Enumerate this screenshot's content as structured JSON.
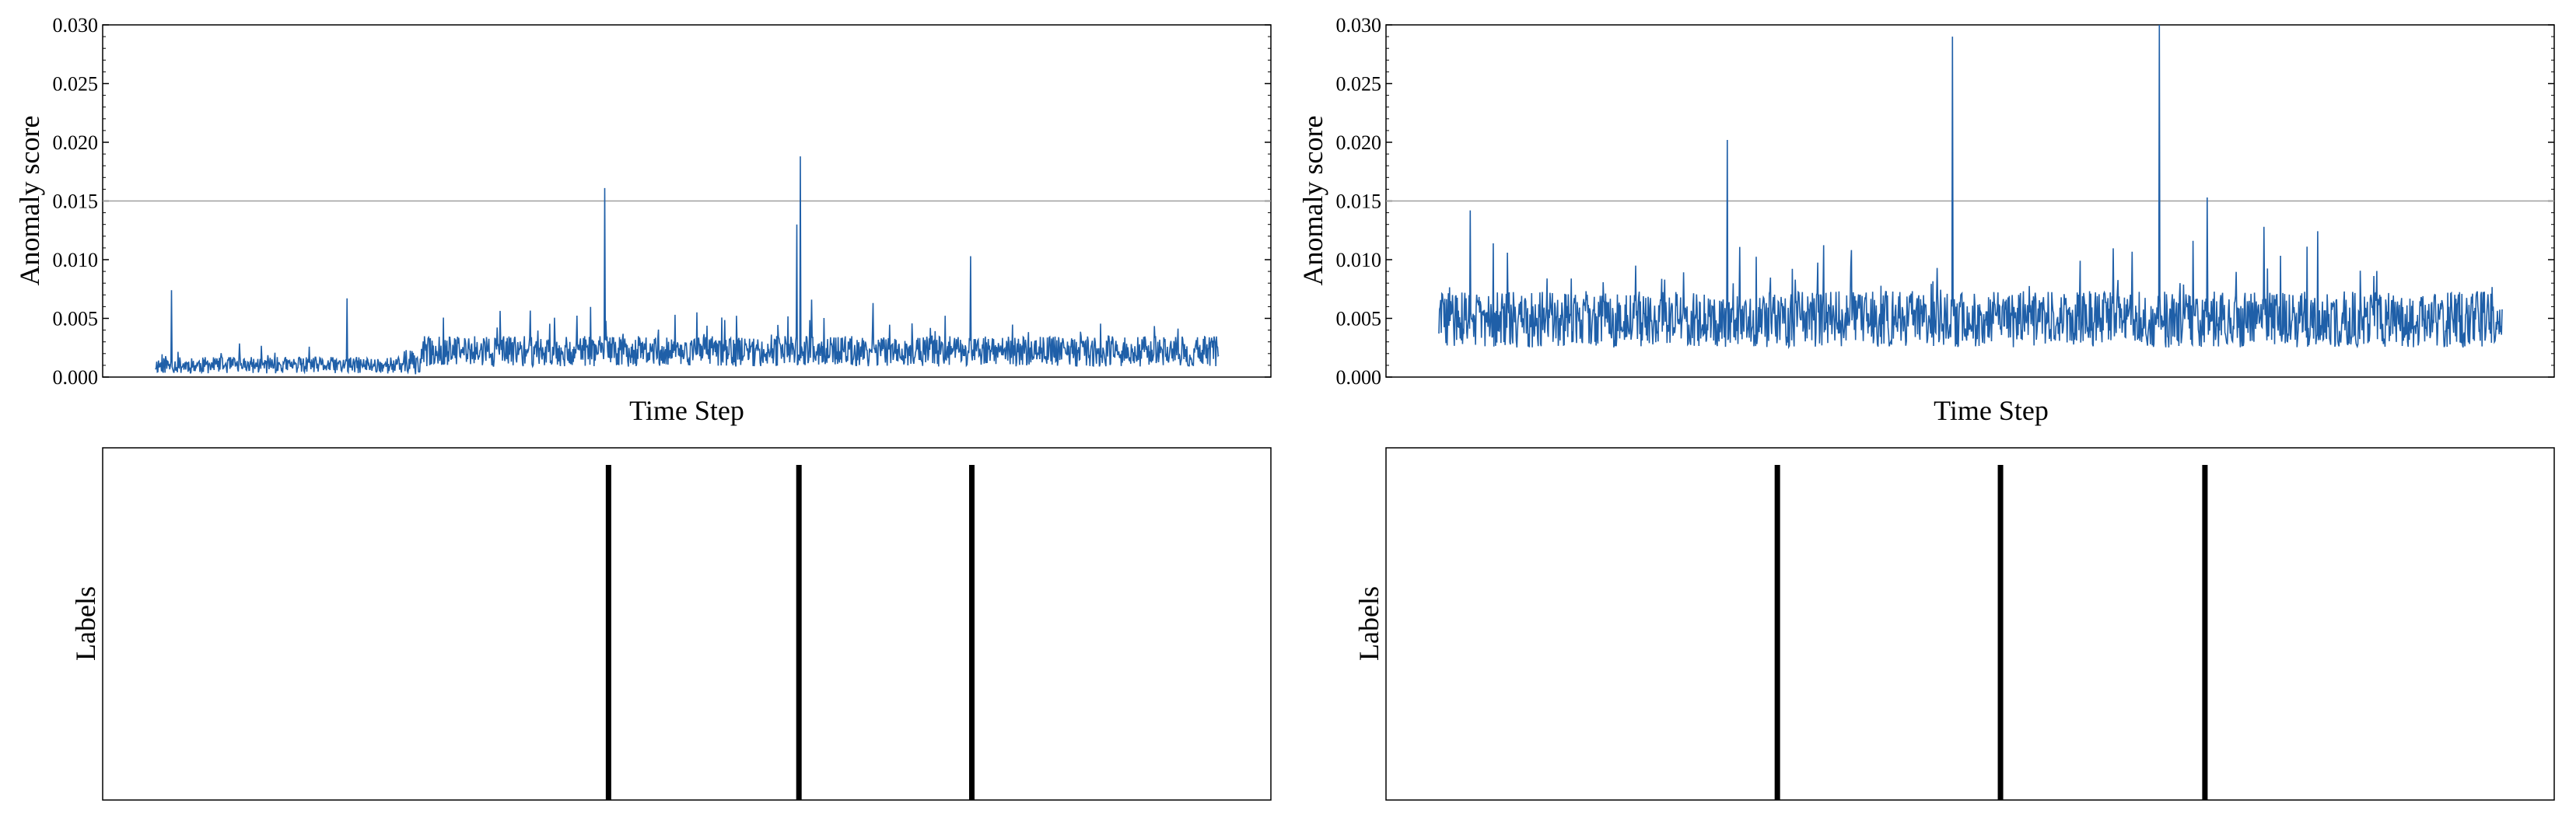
{
  "chart_data": [
    {
      "type": "line",
      "panel": "top-left",
      "xlabel": "Time Step",
      "ylabel": "Anomaly score",
      "ylim": [
        0,
        0.03
      ],
      "yticks": [
        "0.000",
        "0.005",
        "0.010",
        "0.015",
        "0.020",
        "0.025",
        "0.030"
      ],
      "x_ticks_shown": false,
      "xlim": [
        0,
        1000
      ],
      "data_x_range": [
        0,
        920
      ],
      "threshold": 0.015,
      "series_color": "#1f5fa8",
      "threshold_color": "#a0a0a0",
      "peaks": [
        {
          "x": 430,
          "y": 0.0161
        },
        {
          "x": 594,
          "y": 0.013
        },
        {
          "x": 597,
          "y": 0.0188
        },
        {
          "x": 743,
          "y": 0.0103
        },
        {
          "x": 59,
          "y": 0.0074
        },
        {
          "x": 209,
          "y": 0.0067
        }
      ]
    },
    {
      "type": "line",
      "panel": "top-right",
      "xlabel": "Time Step",
      "ylabel": "Anomaly score",
      "ylim": [
        0,
        0.03
      ],
      "yticks": [
        "0.000",
        "0.005",
        "0.010",
        "0.015",
        "0.020",
        "0.025",
        "0.030"
      ],
      "x_ticks_shown": false,
      "xlim": [
        0,
        1000
      ],
      "data_x_range": [
        0,
        920
      ],
      "threshold": 0.015,
      "series_color": "#1f5fa8",
      "threshold_color": "#a0a0a0",
      "peaks": [
        {
          "x": 292,
          "y": 0.0202
        },
        {
          "x": 485,
          "y": 0.029
        },
        {
          "x": 662,
          "y": 0.03
        },
        {
          "x": 703,
          "y": 0.0153
        },
        {
          "x": 72,
          "y": 0.0142
        }
      ]
    },
    {
      "type": "event",
      "panel": "bottom-left",
      "ylabel": "Labels",
      "xlim": [
        0,
        1000
      ],
      "events": [
        433,
        596,
        744
      ],
      "line_color": "#000000"
    },
    {
      "type": "event",
      "panel": "bottom-right",
      "ylabel": "Labels",
      "xlim": [
        0,
        1000
      ],
      "events": [
        335,
        526,
        701
      ],
      "line_color": "#000000"
    }
  ]
}
